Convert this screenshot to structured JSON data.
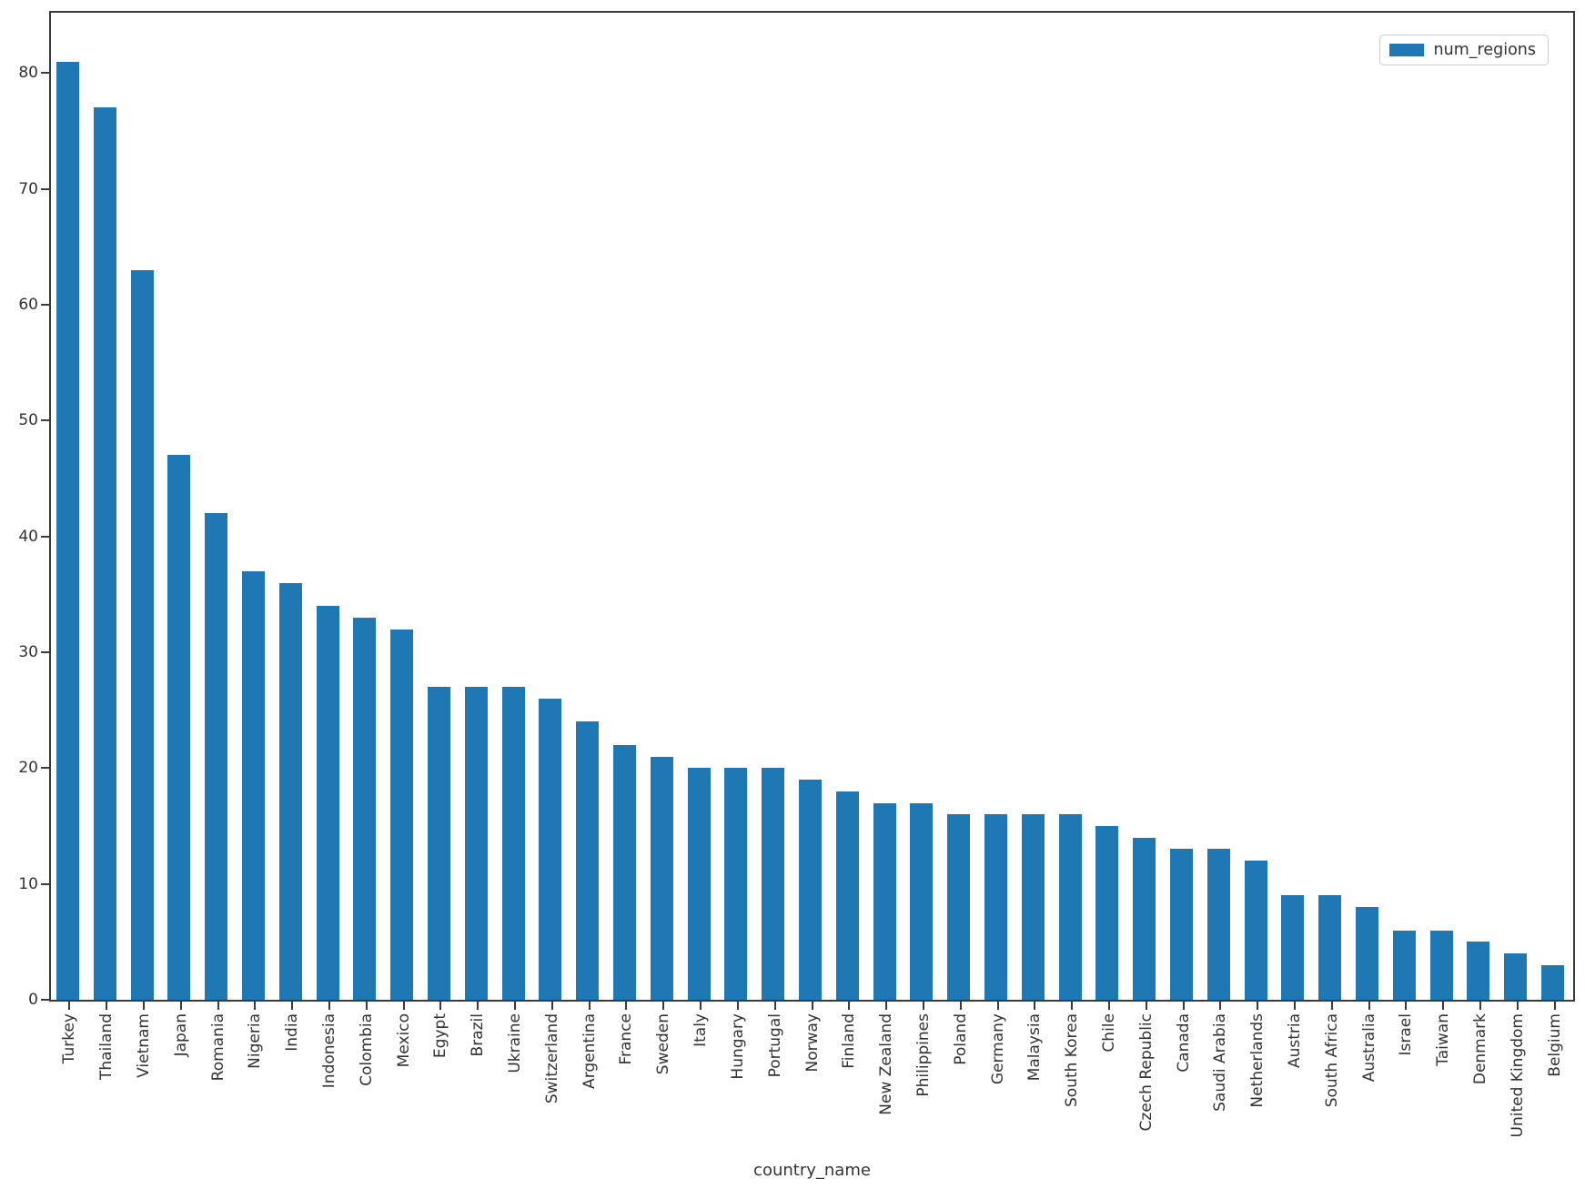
{
  "chart_data": {
    "type": "bar",
    "title": "",
    "xlabel": "country_name",
    "ylabel": "",
    "categories": [
      "Turkey",
      "Thailand",
      "Vietnam",
      "Japan",
      "Romania",
      "Nigeria",
      "India",
      "Indonesia",
      "Colombia",
      "Mexico",
      "Egypt",
      "Brazil",
      "Ukraine",
      "Switzerland",
      "Argentina",
      "France",
      "Sweden",
      "Italy",
      "Hungary",
      "Portugal",
      "Norway",
      "Finland",
      "New Zealand",
      "Philippines",
      "Poland",
      "Germany",
      "Malaysia",
      "South Korea",
      "Chile",
      "Czech Republic",
      "Canada",
      "Saudi Arabia",
      "Netherlands",
      "Austria",
      "South Africa",
      "Australia",
      "Israel",
      "Taiwan",
      "Denmark",
      "United Kingdom",
      "Belgium"
    ],
    "series": [
      {
        "name": "num_regions",
        "color": "#1f77b4",
        "values": [
          81,
          77,
          63,
          47,
          42,
          37,
          36,
          34,
          33,
          32,
          27,
          27,
          27,
          26,
          24,
          22,
          21,
          20,
          20,
          20,
          19,
          18,
          17,
          17,
          16,
          16,
          16,
          16,
          15,
          14,
          13,
          13,
          12,
          9,
          9,
          8,
          6,
          6,
          5,
          4,
          3
        ]
      }
    ],
    "ylim": [
      0,
      85.2
    ],
    "yticks": [
      0,
      10,
      20,
      30,
      40,
      50,
      60,
      70,
      80
    ],
    "grid": false,
    "legend_position": "upper right",
    "x_tick_rotation": 90
  }
}
